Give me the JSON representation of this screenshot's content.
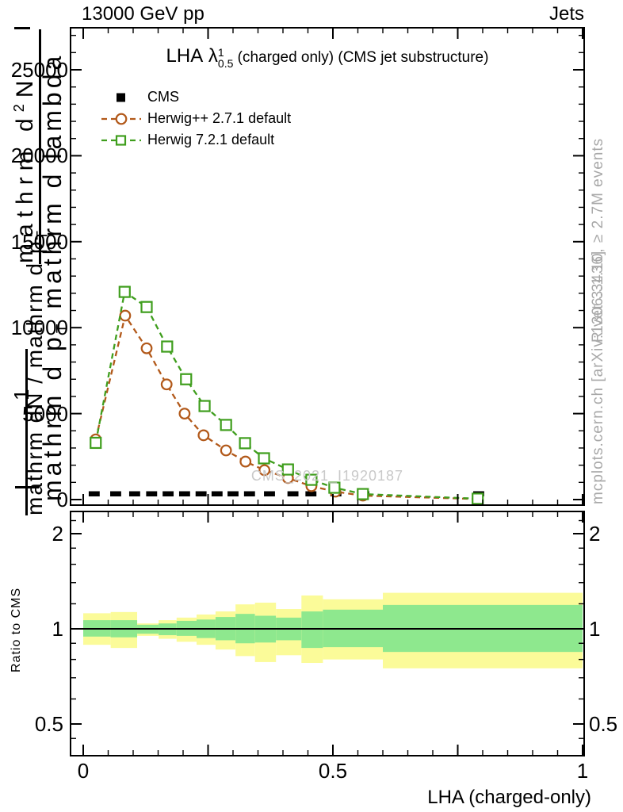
{
  "header": {
    "left": "13000 GeV pp",
    "right": "Jets"
  },
  "title": {
    "lha": "LHA",
    "lambda": "λ",
    "sup": "1",
    "sub": "0.5",
    "rest": "(charged only) (CMS jet substructure)"
  },
  "legend": {
    "items": [
      {
        "label": "CMS",
        "marker": "filled-square",
        "color": "#000000"
      },
      {
        "label": "Herwig++ 2.7.1 default",
        "marker": "open-circle",
        "color": "#b2591a",
        "linestyle": "dashed"
      },
      {
        "label": "Herwig 7.2.1 default",
        "marker": "open-square",
        "color": "#3f9e1d",
        "linestyle": "dashed"
      }
    ]
  },
  "watermark": "CMS_2021_I1920187",
  "side_text_top": "Rivet 3.1.10, ≥ 2.7M events",
  "side_text_bottom": "mcplots.cern.ch [arXiv:1306.3436]",
  "ratio_label": "Ratio to CMS",
  "xlabel": "LHA (charged-only)",
  "ylabel": {
    "num2_pre": "mathrm d",
    "num2_sup": "2",
    "num2_post": "N",
    "den2_pre": "mathrm d p",
    "den2_sub": "T",
    "den2_post": " mathrm d lambda",
    "num1": "1",
    "den1_pre": "mathrm dN / mathrm d p",
    "den1_sub": "T"
  },
  "chart_data": {
    "type": "line",
    "title": "LHA λ^1_0.5 (charged only) (CMS jet substructure)",
    "xlabel": "LHA (charged-only)",
    "ylabel": "1/(mathrm dN/mathrm d p_T) mathrm d2N/(mathrm d p_T mathrm d lambda)",
    "xlim": [
      0,
      1
    ],
    "ylim": [
      0,
      27400
    ],
    "x_major_ticks": [
      0,
      0.25,
      0.5,
      0.75,
      1
    ],
    "x_minor_step": 0.05,
    "x_tick_labels": [
      {
        "v": 0,
        "t": "0"
      },
      {
        "v": 0.5,
        "t": "0.5"
      },
      {
        "v": 1,
        "t": "1"
      }
    ],
    "y_major_ticks": [
      0,
      5000,
      10000,
      15000,
      20000,
      25000
    ],
    "y_tick_labels": [
      "0",
      "5000",
      "10000",
      "15000",
      "20000",
      "25000"
    ],
    "y_minor_step": 1000,
    "grid": false,
    "legend_position": "upper-left",
    "series": [
      {
        "name": "CMS",
        "type": "scatter",
        "marker": "filled-square",
        "color": "#000000",
        "bin_halfwidth": 0.011,
        "x": [
          0.022,
          0.065,
          0.103,
          0.137,
          0.17,
          0.203,
          0.236,
          0.268,
          0.3,
          0.333,
          0.373,
          0.42,
          0.456,
          0.506,
          0.562,
          0.792
        ],
        "y": [
          0,
          0,
          0,
          0,
          0,
          0,
          0,
          0,
          0,
          0,
          0,
          0,
          0,
          0,
          0,
          0
        ]
      },
      {
        "name": "Herwig++ 2.7.1 default",
        "type": "line",
        "marker": "open-circle",
        "linestyle": "dashed",
        "color": "#b2591a",
        "x": [
          0.025,
          0.084,
          0.127,
          0.167,
          0.203,
          0.241,
          0.286,
          0.325,
          0.363,
          0.41,
          0.457,
          0.505,
          0.56,
          0.79
        ],
        "y": [
          3500,
          10700,
          8800,
          6700,
          5000,
          3740,
          2860,
          2210,
          1710,
          1250,
          780,
          460,
          230,
          30
        ]
      },
      {
        "name": "Herwig 7.2.1 default",
        "type": "line",
        "marker": "open-square",
        "linestyle": "dashed",
        "color": "#3f9e1d",
        "x": [
          0.025,
          0.083,
          0.127,
          0.168,
          0.206,
          0.243,
          0.286,
          0.324,
          0.362,
          0.41,
          0.457,
          0.503,
          0.56,
          0.79
        ],
        "y": [
          3300,
          12080,
          11200,
          8900,
          7000,
          5440,
          4340,
          3280,
          2400,
          1750,
          1150,
          690,
          320,
          50
        ]
      }
    ],
    "ratio_panel": {
      "ylabel": "Ratio to CMS",
      "yscale": "log2",
      "ylim": [
        0.4,
        2.35
      ],
      "y_major_ticks": [
        0.5,
        1,
        2
      ],
      "y_tick_labels": [
        "0.5",
        "1",
        "2"
      ],
      "y_minor_ticks": [
        0.45,
        0.6,
        0.7,
        0.8,
        0.9,
        1.2,
        1.4,
        1.6,
        1.8,
        2.2
      ],
      "unity_line": 1,
      "band_colors": {
        "outer": "#fbfb99",
        "inner": "#8ee88e"
      },
      "bands": [
        {
          "x0": 0.0,
          "x1": 0.055,
          "ylo": 0.89,
          "yhi": 1.12,
          "glo": 0.945,
          "ghi": 1.065
        },
        {
          "x0": 0.055,
          "x1": 0.108,
          "ylo": 0.87,
          "yhi": 1.13,
          "glo": 0.94,
          "ghi": 1.065
        },
        {
          "x0": 0.108,
          "x1": 0.151,
          "ylo": 0.95,
          "yhi": 1.04,
          "glo": 0.965,
          "ghi": 1.03
        },
        {
          "x0": 0.151,
          "x1": 0.187,
          "ylo": 0.93,
          "yhi": 1.065,
          "glo": 0.955,
          "ghi": 1.04
        },
        {
          "x0": 0.187,
          "x1": 0.227,
          "ylo": 0.91,
          "yhi": 1.085,
          "glo": 0.95,
          "ghi": 1.06
        },
        {
          "x0": 0.227,
          "x1": 0.265,
          "ylo": 0.89,
          "yhi": 1.11,
          "glo": 0.935,
          "ghi": 1.07
        },
        {
          "x0": 0.265,
          "x1": 0.305,
          "ylo": 0.86,
          "yhi": 1.135,
          "glo": 0.92,
          "ghi": 1.09
        },
        {
          "x0": 0.305,
          "x1": 0.344,
          "ylo": 0.82,
          "yhi": 1.195,
          "glo": 0.9,
          "ghi": 1.115
        },
        {
          "x0": 0.344,
          "x1": 0.386,
          "ylo": 0.785,
          "yhi": 1.21,
          "glo": 0.905,
          "ghi": 1.1
        },
        {
          "x0": 0.386,
          "x1": 0.437,
          "ylo": 0.825,
          "yhi": 1.155,
          "glo": 0.92,
          "ghi": 1.085
        },
        {
          "x0": 0.437,
          "x1": 0.48,
          "ylo": 0.78,
          "yhi": 1.275,
          "glo": 0.87,
          "ghi": 1.135
        },
        {
          "x0": 0.48,
          "x1": 0.6,
          "ylo": 0.8,
          "yhi": 1.24,
          "glo": 0.875,
          "ghi": 1.15
        },
        {
          "x0": 0.6,
          "x1": 1.0,
          "ylo": 0.75,
          "yhi": 1.3,
          "glo": 0.845,
          "ghi": 1.19
        }
      ]
    }
  }
}
